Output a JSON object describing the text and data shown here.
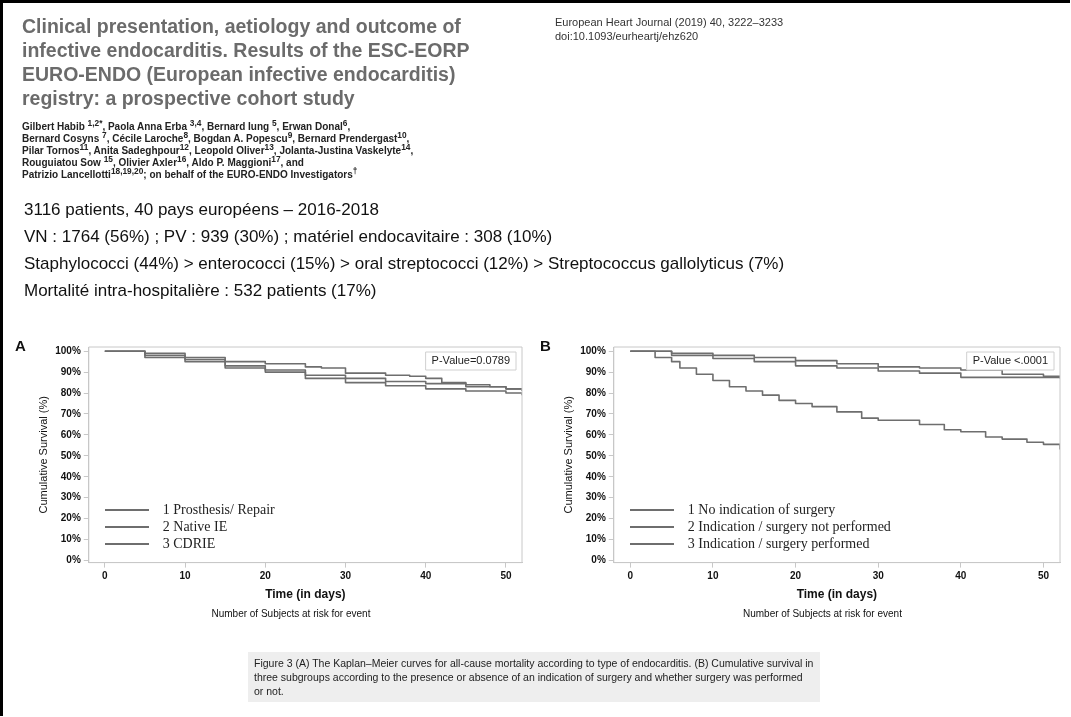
{
  "chart_data": [
    {
      "type": "other",
      "title": "Clinical presentation, aetiology and outcome of infective endocarditis. Results of the ESC-EORP EURO-ENDO (European infective endocarditis) registry: a prospective cohort study",
      "annotations": [
        "European Heart Journal (2019) 40, 3222–3233",
        "doi:10.1093/eurheartj/ehz620",
        "Gilbert Habib $^{1,2*}$, Paola Anna Erba $^{3,4}$, Bernard Iung $^{5}$, Erwan Donal$^{6}$,",
        "Bernard Cosyns $^{7}$, Cécile Laroche$^{8}$, Bogdan A. Popescu$^{9}$, Bernard Prendergast$^{10}$,",
        "Pilar Tornos$^{11}$, Anita Sadeghpour$^{12}$, Leopold Oliver$^{13}$, Jolanta-Justina Vaskelyte$^{14}$,",
        "Rouguiatou Sow $^{15}$, Olivier Axler$^{16}$, Aldo P. Maggioni$^{17}$, and",
        "Patrizio Lancellotti$^{18,19,20}$; on behalf of the EURO-ENDO Investigators$^{†}$",
        "3116 patients, 40 pays européens – 2016-2018",
        "VN : 1764 (56%) ; PV : 939 (30%) ; matériel endocavitaire : 308 (10%)",
        "Staphylococci (44%) > enterococci (15%) > oral streptococci (12%) > Streptococcus gallolyticus (7%)",
        "Mortalité intra-hospitalière : 532 patients (17%)",
        "Figure 3 (A) The Kaplan–Meier curves for all-cause mortality according to type of endocarditis. (B) Cumulative survival in three subgroups according to the presence or absence of an indication of surgery and whether surgery was performed or not."
      ]
    },
    {
      "type": "step",
      "xlabel": "Time (in days)",
      "ylabel": "Cumulative Survival (%)",
      "annotations": [
        "A",
        "P-Value=0.0789",
        "Number of Subjects at risk for event"
      ],
      "xlim": [
        -2,
        52
      ],
      "xticks": [
        0,
        10,
        20,
        30,
        40,
        50
      ],
      "ylim": [
        -1,
        102
      ],
      "yticks": [
        {
          "value": 0,
          "label": "0%"
        },
        {
          "value": 10,
          "label": "10%"
        },
        {
          "value": 20,
          "label": "20%"
        },
        {
          "value": 30,
          "label": "30%"
        },
        {
          "value": 40,
          "label": "40%"
        },
        {
          "value": 50,
          "label": "50%"
        },
        {
          "value": 60,
          "label": "60%"
        },
        {
          "value": 70,
          "label": "70%"
        },
        {
          "value": 80,
          "label": "80%"
        },
        {
          "value": 90,
          "label": "90%"
        },
        {
          "value": 100,
          "label": "100%"
        }
      ],
      "grid": false,
      "legend": "bottom left",
      "marker": "none",
      "line_style": "solid",
      "series": [
        {
          "name": "1 Prosthesis/ Repair",
          "color": "#6e6e6e",
          "x": [
            0,
            5,
            10,
            15,
            20,
            25,
            27,
            30,
            35,
            38,
            40,
            42,
            45,
            48,
            50,
            52
          ],
          "values": [
            100,
            99,
            97,
            95,
            94,
            92.5,
            92,
            89.5,
            88.5,
            88,
            87,
            85,
            84,
            83,
            82,
            81
          ]
        },
        {
          "name": "2 Native IE",
          "color": "#6e6e6e",
          "x": [
            0,
            5,
            10,
            15,
            20,
            25,
            30,
            35,
            40,
            45,
            50,
            52
          ],
          "values": [
            100,
            98,
            96,
            93,
            91,
            88.5,
            87,
            85.5,
            84.5,
            83,
            82,
            82
          ]
        },
        {
          "name": "3 CDRIE",
          "color": "#6e6e6e",
          "x": [
            0,
            5,
            10,
            15,
            20,
            25,
            30,
            35,
            40,
            45,
            50,
            52
          ],
          "values": [
            100,
            97,
            95,
            92,
            90,
            87,
            85,
            83.5,
            82,
            81,
            80,
            79
          ]
        }
      ]
    },
    {
      "type": "step",
      "xlabel": "Time (in days)",
      "ylabel": "Cumulative Survival (%)",
      "annotations": [
        "B",
        "P-Value <.0001",
        "Number of Subjects at risk for event"
      ],
      "xlim": [
        -2,
        52
      ],
      "xticks": [
        0,
        10,
        20,
        30,
        40,
        50
      ],
      "ylim": [
        -1,
        102
      ],
      "yticks": [
        {
          "value": 0,
          "label": "0%"
        },
        {
          "value": 10,
          "label": "10%"
        },
        {
          "value": 20,
          "label": "20%"
        },
        {
          "value": 30,
          "label": "30%"
        },
        {
          "value": 40,
          "label": "40%"
        },
        {
          "value": 50,
          "label": "50%"
        },
        {
          "value": 60,
          "label": "60%"
        },
        {
          "value": 70,
          "label": "70%"
        },
        {
          "value": 80,
          "label": "80%"
        },
        {
          "value": 90,
          "label": "90%"
        },
        {
          "value": 100,
          "label": "100%"
        }
      ],
      "grid": false,
      "legend": "bottom left",
      "marker": "none",
      "line_style": "solid",
      "series": [
        {
          "name": "1 No indication of surgery",
          "color": "#6e6e6e",
          "x": [
            0,
            5,
            10,
            15,
            20,
            25,
            30,
            35,
            40,
            45,
            50,
            52
          ],
          "values": [
            100,
            99,
            98,
            97,
            95.5,
            94,
            92.5,
            92,
            91,
            89,
            88,
            87.5
          ]
        },
        {
          "name": "2 Indication / surgery not performed",
          "color": "#6e6e6e",
          "x": [
            0,
            3,
            5,
            6,
            8,
            10,
            12,
            14,
            16,
            18,
            20,
            22,
            25,
            28,
            30,
            35,
            38,
            40,
            43,
            45,
            48,
            50,
            52
          ],
          "values": [
            100,
            97,
            95,
            92,
            89,
            86,
            83,
            81,
            79,
            76.5,
            75,
            73.5,
            71,
            68,
            67,
            65,
            62.5,
            61.5,
            59,
            58,
            56.5,
            55.5,
            53
          ]
        },
        {
          "name": "3 Indication / surgery performed",
          "color": "#6e6e6e",
          "x": [
            0,
            5,
            10,
            15,
            20,
            25,
            30,
            35,
            40,
            45,
            50,
            52
          ],
          "values": [
            100,
            98,
            96.5,
            95,
            93,
            92,
            90.5,
            89.5,
            87.5,
            87.5,
            87.5,
            87
          ]
        }
      ]
    }
  ]
}
